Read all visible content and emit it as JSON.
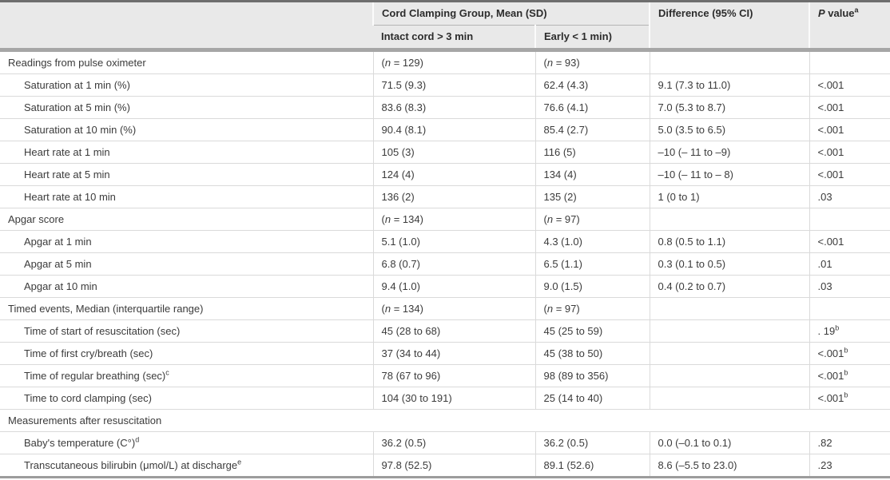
{
  "header": {
    "group_title": "Cord Clamping Group, Mean (SD)",
    "col_intact": "Intact cord > 3 min",
    "col_early": "Early < 1 min)",
    "col_difference": "Difference (95% CI)",
    "p_value_p": "P",
    "p_value_rest": " value",
    "p_value_sup": "a"
  },
  "colors": {
    "header_background": "#e9e9e9",
    "top_border": "#6e6e6e",
    "thick_divider": "#a6a6a6",
    "bottom_border": "#9c9c9c",
    "grid_line": "#dadada",
    "text": "#3b3b3b"
  },
  "table": {
    "rows": [
      {
        "type": "section",
        "label": "Readings from pulse oximeter",
        "c1": "(n = 129)",
        "c2": "(n = 93)",
        "diff": "",
        "p": ""
      },
      {
        "type": "item",
        "label": "Saturation at 1 min (%)",
        "c1": "71.5 (9.3)",
        "c2": "62.4 (4.3)",
        "diff": "9.1 (7.3 to 11.0)",
        "p": "<.001"
      },
      {
        "type": "item",
        "label": "Saturation at 5 min (%)",
        "c1": "83.6 (8.3)",
        "c2": "76.6 (4.1)",
        "diff": "7.0 (5.3 to 8.7)",
        "p": "<.001"
      },
      {
        "type": "item",
        "label": "Saturation at 10 min (%)",
        "c1": "90.4 (8.1)",
        "c2": "85.4 (2.7)",
        "diff": "5.0 (3.5 to 6.5)",
        "p": "<.001"
      },
      {
        "type": "item",
        "label": "Heart rate at 1 min",
        "c1": "105 (3)",
        "c2": "116 (5)",
        "diff": "–10 (– 11 to –9)",
        "p": "<.001"
      },
      {
        "type": "item",
        "label": "Heart rate at 5 min",
        "c1": "124 (4)",
        "c2": "134 (4)",
        "diff": "–10 (– 11 to – 8)",
        "p": "<.001"
      },
      {
        "type": "item",
        "label": "Heart rate at 10 min",
        "c1": "136 (2)",
        "c2": "135 (2)",
        "diff": "1 (0 to 1)",
        "p": ".03"
      },
      {
        "type": "section",
        "label": "Apgar score",
        "c1": "(n = 134)",
        "c2": "(n = 97)",
        "diff": "",
        "p": ""
      },
      {
        "type": "item",
        "label": "Apgar at 1 min",
        "c1": "5.1 (1.0)",
        "c2": "4.3 (1.0)",
        "diff": "0.8 (0.5 to 1.1)",
        "p": "<.001"
      },
      {
        "type": "item",
        "label": "Apgar at 5 min",
        "c1": "6.8 (0.7)",
        "c2": "6.5 (1.1)",
        "diff": "0.3 (0.1 to 0.5)",
        "p": ".01"
      },
      {
        "type": "item",
        "label": "Apgar at 10 min",
        "c1": "9.4 (1.0)",
        "c2": "9.0 (1.5)",
        "diff": "0.4 (0.2 to 0.7)",
        "p": ".03"
      },
      {
        "type": "section",
        "label": "Timed events, Median (interquartile range)",
        "c1": "(n = 134)",
        "c2": "(n = 97)",
        "diff": "",
        "p": ""
      },
      {
        "type": "item",
        "label": "Time of start of resuscitation (sec)",
        "c1": "45 (28 to 68)",
        "c2": "45 (25 to 59)",
        "diff": "",
        "p": ". 19",
        "p_sup": "b"
      },
      {
        "type": "item",
        "label": "Time of first cry/breath (sec)",
        "c1": "37 (34 to 44)",
        "c2": "45 (38 to 50)",
        "diff": "",
        "p": "<.001",
        "p_sup": "b"
      },
      {
        "type": "item",
        "label": "Time of regular breathing (sec)",
        "label_sup": "c",
        "c1": "78 (67 to 96)",
        "c2": "98 (89 to 356)",
        "diff": "",
        "p": "<.001",
        "p_sup": "b"
      },
      {
        "type": "item",
        "label": "Time to cord clamping (sec)",
        "c1": "104 (30 to 191)",
        "c2": "25 (14 to 40)",
        "diff": "",
        "p": "<.001",
        "p_sup": "b"
      },
      {
        "type": "span",
        "label": "Measurements after resuscitation"
      },
      {
        "type": "item",
        "label": "Baby's temperature (C°)",
        "label_sup": "d",
        "c1": "36.2 (0.5)",
        "c2": "36.2 (0.5)",
        "diff": "0.0 (–0.1 to 0.1)",
        "p": ".82"
      },
      {
        "type": "item",
        "label": "Transcutaneous bilirubin (μmol/L) at discharge",
        "label_sup": "e",
        "c1": "97.8 (52.5)",
        "c2": "89.1 (52.6)",
        "diff": "8.6 (–5.5 to 23.0)",
        "p": ".23"
      }
    ]
  }
}
